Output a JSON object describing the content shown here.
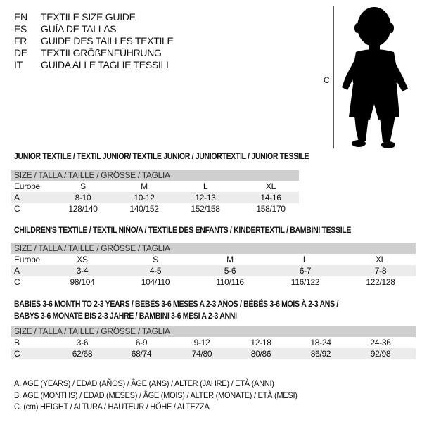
{
  "languages": [
    {
      "code": "EN",
      "text": "TEXTILE SIZE GUIDE"
    },
    {
      "code": "ES",
      "text": "GUÍA DE TALLAS"
    },
    {
      "code": "FR",
      "text": "GUIDE DES TAILLES TEXTILE"
    },
    {
      "code": "DE",
      "text": "TEXTILGRÖßENFÜHRUNG"
    },
    {
      "code": "IT",
      "text": "GUIDA ALLE TAGLIE TESSILI"
    }
  ],
  "figure": {
    "measure_label": "C",
    "icon": "child-silhouette-icon"
  },
  "size_header": "SIZE / TALLA / TAILLE / GRÖSSE / TAGLIA",
  "junior": {
    "title": "JUNIOR TEXTILE / TEXTIL JUNIOR/ TEXTILE JUNIOR / JUNIORTEXTIL / JUNIOR TESSILE",
    "rows": [
      {
        "label": "Europe",
        "values": [
          "S",
          "M",
          "L",
          "XL"
        ]
      },
      {
        "label": "A",
        "values": [
          "8-10",
          "10-12",
          "12-13",
          "14-16"
        ]
      },
      {
        "label": "C",
        "values": [
          "128/140",
          "140/152",
          "152/158",
          "158/170"
        ]
      }
    ]
  },
  "children": {
    "title": "CHILDREN'S TEXTILE / TEXTIL NIÑO/A / TEXTILE DES ENFANTS / KINDERTEXTIL / BAMBINI TESSILE",
    "rows": [
      {
        "label": "Europe",
        "values": [
          "XS",
          "S",
          "M",
          "L",
          "XL"
        ]
      },
      {
        "label": "A",
        "values": [
          "3-4",
          "4-5",
          "5-6",
          "6-7",
          "7-8"
        ]
      },
      {
        "label": "C",
        "values": [
          "98/104",
          "104/110",
          "110/116",
          "116/122",
          "122/128"
        ]
      }
    ]
  },
  "babies": {
    "title_line1": "BABIES 3-6 MONTH TO 2-3 YEARS / BEBÉS 3-6 MESES A 2-3 AÑOS / BÉBÉS 3-6 MOIS À 2-3 ANS /",
    "title_line2": "BABYS 3-6 MONATE BIS 2-3 JAHRE / BAMBINI 3-6 MESI A 2-3 ANNI",
    "rows": [
      {
        "label": "B",
        "values": [
          "3-6",
          "6-9",
          "9-12",
          "12-18",
          "18-24",
          "24-36"
        ]
      },
      {
        "label": "C",
        "values": [
          "62/68",
          "68/74",
          "74/80",
          "80/86",
          "86/92",
          "92/98"
        ]
      }
    ]
  },
  "notes": [
    "A. AGE (YEARS) / EDAD (AÑOS) / ÂGE (ANS) / ALTER (JAHRE) / ETÀ (ANNI)",
    "B. AGE (MONTHS) / EDAD (MESES) / ÂGE (MOIS) / ALTER (MONATE) / ETÀ (MESI)",
    "C. (cm) HEIGHT / ALTURA / HAUTEUR / HÖHE / ALTEZZA"
  ]
}
